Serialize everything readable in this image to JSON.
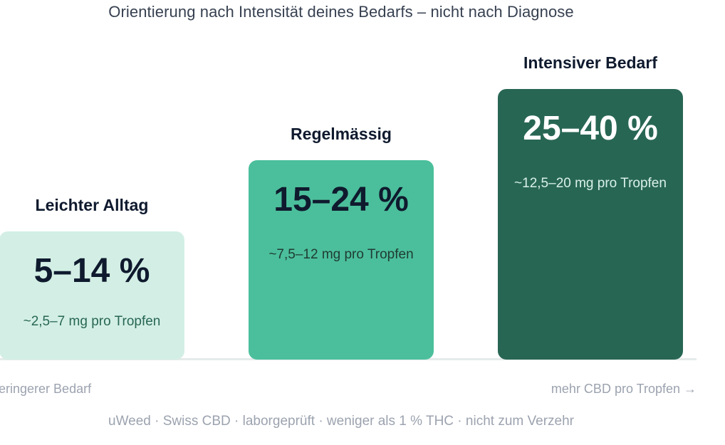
{
  "chart_data": {
    "type": "bar",
    "subtitle": "Orientierung nach Intensität deines Bedarfs – nicht nach Diagnose",
    "categories": [
      "Leichter Alltag",
      "Regelmässig",
      "Intensiver Bedarf"
    ],
    "levels": [
      1,
      2,
      3
    ],
    "values": [
      "5–14 %",
      "15–24 %",
      "25–40 %"
    ],
    "notes": [
      "~2,5–7 mg pro Tropfen",
      "~7,5–12 mg pro Tropfen",
      "~12,5–20 mg pro Tropfen"
    ],
    "colors": [
      "#d3efe5",
      "#4bbf9b",
      "#286654"
    ],
    "value_colors": [
      "#0f1a2e",
      "#0f1a2e",
      "#ffffff"
    ],
    "note_colors": [
      "#286654",
      "#1f3b33",
      "#d9f1e8"
    ],
    "x_axis_left": "geringerer Bedarf",
    "x_axis_right": "mehr CBD pro Tropfen →"
  },
  "footer": "uWeed · Swiss CBD · laborgeprüft · weniger als 1 % THC · nicht zum Verzehr"
}
